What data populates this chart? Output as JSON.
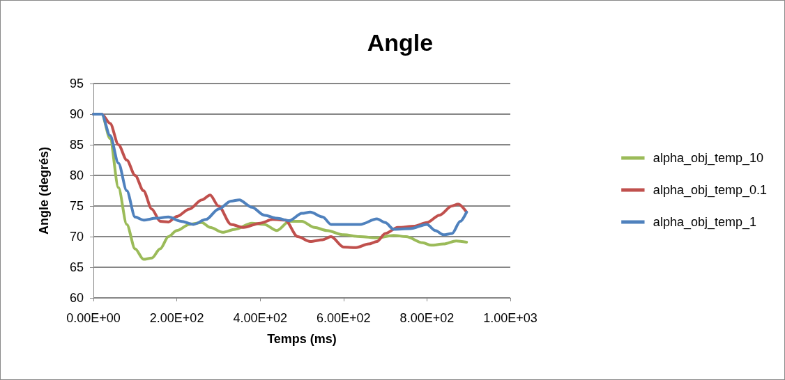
{
  "chart_data": {
    "type": "line",
    "title": "Angle",
    "xlabel": "Temps (ms)",
    "ylabel": "Angle (degrés)",
    "xlim": [
      0,
      1000
    ],
    "xticks": [
      {
        "value": 0,
        "label": "0.00E+00"
      },
      {
        "value": 200,
        "label": "2.00E+02"
      },
      {
        "value": 400,
        "label": "4.00E+02"
      },
      {
        "value": 600,
        "label": "6.00E+02"
      },
      {
        "value": 800,
        "label": "8.00E+02"
      },
      {
        "value": 1000,
        "label": "1.00E+03"
      }
    ],
    "ylim": [
      60,
      95
    ],
    "yticks": [
      60,
      65,
      70,
      75,
      80,
      85,
      90,
      95
    ],
    "grid": "y",
    "legend": "right",
    "marker": "none",
    "line_style": "solid",
    "series": [
      {
        "name": "alpha_obj_temp_10",
        "color": "#9bbb59",
        "x": [
          0,
          20,
          40,
          60,
          80,
          100,
          120,
          140,
          160,
          180,
          200,
          230,
          260,
          280,
          310,
          340,
          380,
          410,
          440,
          470,
          500,
          530,
          560,
          600,
          640,
          680,
          720,
          750,
          790,
          810,
          840,
          870,
          895
        ],
        "values": [
          90,
          90,
          86,
          78,
          72,
          68,
          66.3,
          66.5,
          68,
          70,
          71,
          72,
          72.3,
          71.5,
          70.7,
          71.2,
          72.2,
          72,
          71,
          72.5,
          72.5,
          71.5,
          71,
          70.3,
          70,
          69.8,
          70.2,
          70,
          69,
          68.6,
          68.8,
          69.3,
          69.1
        ]
      },
      {
        "name": "alpha_obj_temp_0.1",
        "color": "#c0504d",
        "x": [
          0,
          20,
          40,
          60,
          80,
          100,
          120,
          140,
          160,
          180,
          200,
          230,
          260,
          280,
          300,
          330,
          360,
          400,
          430,
          460,
          490,
          520,
          550,
          570,
          600,
          630,
          660,
          680,
          700,
          730,
          770,
          800,
          830,
          860,
          875,
          895
        ],
        "values": [
          90,
          90,
          88.5,
          85,
          82.5,
          80,
          77.5,
          74.5,
          72.5,
          72.4,
          73.3,
          74.5,
          76,
          76.8,
          75,
          72,
          71.5,
          72.2,
          72.8,
          72.7,
          70,
          69.2,
          69.5,
          70,
          68.3,
          68.2,
          68.8,
          69.2,
          70.5,
          71.5,
          71.7,
          72.3,
          73.5,
          75,
          75.3,
          74
        ]
      },
      {
        "name": "alpha_obj_temp_1",
        "color": "#4f81bd",
        "x": [
          0,
          20,
          40,
          60,
          80,
          100,
          120,
          150,
          180,
          210,
          240,
          270,
          300,
          330,
          350,
          380,
          410,
          440,
          470,
          500,
          520,
          550,
          570,
          600,
          640,
          680,
          700,
          720,
          760,
          800,
          820,
          840,
          860,
          880,
          895
        ],
        "values": [
          90,
          90,
          86.5,
          82,
          77.5,
          73.2,
          72.7,
          73,
          73.2,
          72.5,
          72,
          72.8,
          74.5,
          75.8,
          76,
          74.8,
          73.5,
          73,
          72.6,
          73.8,
          74,
          73.2,
          72,
          72,
          72,
          72.9,
          72.3,
          71.2,
          71.3,
          72,
          71,
          70.3,
          70.5,
          72.5,
          74
        ]
      }
    ]
  }
}
